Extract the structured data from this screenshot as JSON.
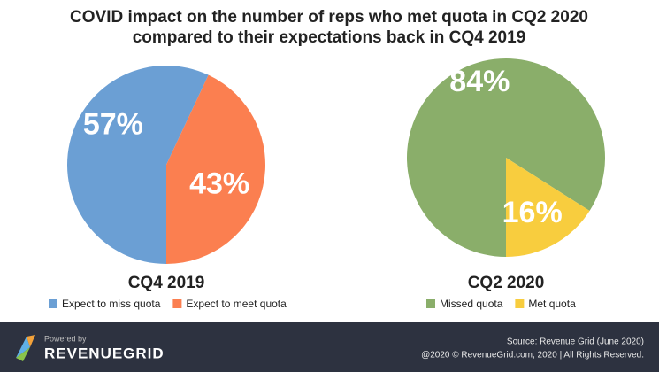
{
  "title": [
    "COVID impact on the number of reps who met quota in CQ2 2020",
    "compared to their expectations back in CQ4 2019"
  ],
  "chart_data": [
    {
      "type": "pie",
      "title": "CQ4 2019",
      "categories": [
        "Expect to miss quota",
        "Expect to meet quota"
      ],
      "values": [
        57,
        43
      ],
      "value_labels": [
        "57%",
        "43%"
      ],
      "colors": [
        "#6b9fd4",
        "#fb7f50"
      ]
    },
    {
      "type": "pie",
      "title": "CQ2 2020",
      "categories": [
        "Missed quota",
        "Met quota"
      ],
      "values": [
        84,
        16
      ],
      "value_labels": [
        "84%",
        "16%"
      ],
      "colors": [
        "#8aae6a",
        "#f8cd3e"
      ]
    }
  ],
  "footer": {
    "powered": "Powered by",
    "brand": "REVENUEGRID",
    "source": "Source: Revenue Grid (June 2020)",
    "copyright": "@2020 © RevenueGrid.com, 2020 | All Rights Reserved."
  }
}
